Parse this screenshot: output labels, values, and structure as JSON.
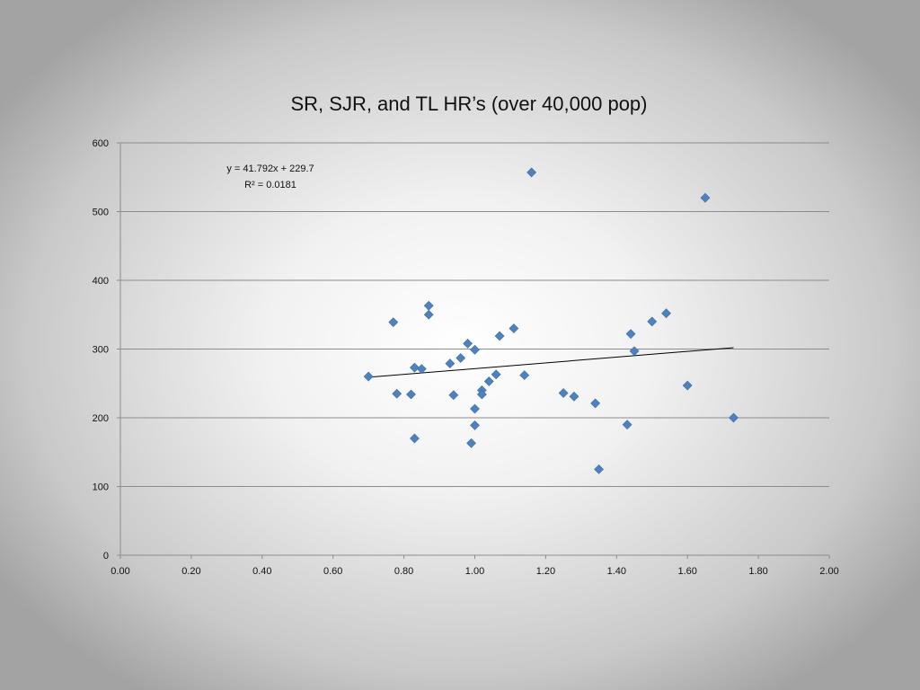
{
  "chart_data": {
    "type": "scatter",
    "title": "SR, SJR, and TL HR’s (over 40,000 pop)",
    "xlabel": "",
    "ylabel": "",
    "xlim": [
      0,
      2
    ],
    "ylim": [
      0,
      600
    ],
    "x_ticks": [
      "0.00",
      "0.20",
      "0.40",
      "0.60",
      "0.80",
      "1.00",
      "1.20",
      "1.40",
      "1.60",
      "1.80",
      "2.00"
    ],
    "x_tick_values": [
      0,
      0.2,
      0.4,
      0.6,
      0.8,
      1.0,
      1.2,
      1.4,
      1.6,
      1.8,
      2.0
    ],
    "y_ticks": [
      "0",
      "100",
      "200",
      "300",
      "400",
      "500",
      "600"
    ],
    "y_tick_values": [
      0,
      100,
      200,
      300,
      400,
      500,
      600
    ],
    "grid": "horizontal",
    "marker": "diamond",
    "marker_color": "#4f81bd",
    "trendline_color": "#000000",
    "points": [
      {
        "x": 0.7,
        "y": 260
      },
      {
        "x": 0.77,
        "y": 339
      },
      {
        "x": 0.78,
        "y": 235
      },
      {
        "x": 0.82,
        "y": 234
      },
      {
        "x": 0.83,
        "y": 273
      },
      {
        "x": 0.83,
        "y": 170
      },
      {
        "x": 0.85,
        "y": 271
      },
      {
        "x": 0.87,
        "y": 350
      },
      {
        "x": 0.87,
        "y": 363
      },
      {
        "x": 0.93,
        "y": 279
      },
      {
        "x": 0.94,
        "y": 233
      },
      {
        "x": 0.96,
        "y": 287
      },
      {
        "x": 0.98,
        "y": 308
      },
      {
        "x": 0.99,
        "y": 163
      },
      {
        "x": 1.0,
        "y": 299
      },
      {
        "x": 1.0,
        "y": 213
      },
      {
        "x": 1.0,
        "y": 189
      },
      {
        "x": 1.02,
        "y": 240
      },
      {
        "x": 1.02,
        "y": 234
      },
      {
        "x": 1.04,
        "y": 253
      },
      {
        "x": 1.06,
        "y": 263
      },
      {
        "x": 1.07,
        "y": 319
      },
      {
        "x": 1.11,
        "y": 330
      },
      {
        "x": 1.14,
        "y": 262
      },
      {
        "x": 1.16,
        "y": 557
      },
      {
        "x": 1.25,
        "y": 236
      },
      {
        "x": 1.28,
        "y": 231
      },
      {
        "x": 1.34,
        "y": 221
      },
      {
        "x": 1.35,
        "y": 125
      },
      {
        "x": 1.43,
        "y": 190
      },
      {
        "x": 1.44,
        "y": 322
      },
      {
        "x": 1.45,
        "y": 297
      },
      {
        "x": 1.5,
        "y": 340
      },
      {
        "x": 1.54,
        "y": 352
      },
      {
        "x": 1.6,
        "y": 247
      },
      {
        "x": 1.65,
        "y": 520
      },
      {
        "x": 1.73,
        "y": 200
      }
    ],
    "trendline": {
      "slope": 41.792,
      "intercept": 229.7,
      "x_start": 0.7,
      "x_end": 1.73,
      "equation_text": "y = 41.792x + 229.7",
      "r2_text": "R² = 0.0181"
    }
  }
}
